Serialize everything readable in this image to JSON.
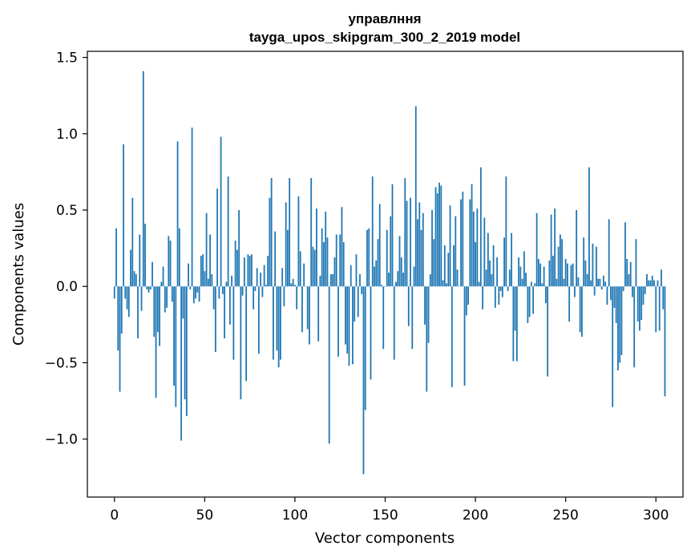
{
  "chart_data": {
    "type": "bar",
    "title": "управлння",
    "subtitle": "tayga_upos_skipgram_300_2_2019 model",
    "xlabel": "Vector components",
    "ylabel": "Components values",
    "xlim": [
      -15,
      315
    ],
    "ylim": [
      -1.38,
      1.54
    ],
    "x_ticks": [
      {
        "value": 0,
        "label": "0"
      },
      {
        "value": 50,
        "label": "50"
      },
      {
        "value": 100,
        "label": "100"
      },
      {
        "value": 150,
        "label": "150"
      },
      {
        "value": 200,
        "label": "200"
      },
      {
        "value": 250,
        "label": "250"
      },
      {
        "value": 300,
        "label": "300"
      }
    ],
    "y_ticks": [
      {
        "value": -1.0,
        "label": "−1.0"
      },
      {
        "value": -0.5,
        "label": "−0.5"
      },
      {
        "value": 0.0,
        "label": "0.0"
      },
      {
        "value": 0.5,
        "label": "0.5"
      },
      {
        "value": 1.0,
        "label": "1.0"
      },
      {
        "value": 1.5,
        "label": "1.5"
      }
    ],
    "bar_color": "#1f77b4",
    "values": [
      -0.08,
      0.38,
      -0.42,
      -0.69,
      -0.31,
      0.93,
      -0.08,
      -0.15,
      -0.2,
      0.24,
      0.58,
      0.1,
      0.08,
      -0.34,
      0.34,
      -0.16,
      1.41,
      0.41,
      -0.02,
      -0.04,
      -0.02,
      0.16,
      -0.33,
      -0.73,
      -0.3,
      -0.39,
      0.03,
      0.13,
      -0.17,
      -0.14,
      0.33,
      0.3,
      -0.1,
      -0.65,
      -0.79,
      0.95,
      0.38,
      -1.01,
      -0.21,
      -0.74,
      -0.85,
      0.15,
      -0.02,
      1.04,
      -0.11,
      -0.08,
      -0.04,
      -0.1,
      0.2,
      0.21,
      0.1,
      0.48,
      0.05,
      0.34,
      0.08,
      -0.15,
      -0.43,
      0.64,
      -0.08,
      0.98,
      -0.05,
      -0.34,
      0.03,
      0.72,
      -0.25,
      0.07,
      -0.48,
      0.3,
      0.24,
      0.5,
      -0.74,
      -0.06,
      0.19,
      -0.62,
      0.21,
      0.2,
      0.21,
      -0.15,
      -0.03,
      0.12,
      -0.44,
      0.09,
      -0.07,
      0.14,
      0.01,
      0.2,
      0.58,
      0.71,
      -0.48,
      0.36,
      -0.42,
      -0.53,
      -0.48,
      0.12,
      -0.13,
      0.55,
      0.37,
      0.71,
      0.02,
      0.05,
      0.01,
      -0.15,
      0.59,
      0.23,
      -0.3,
      0.15,
      0.0,
      -0.28,
      -0.38,
      0.71,
      0.26,
      0.24,
      0.51,
      -0.36,
      0.07,
      0.38,
      0.29,
      0.49,
      0.32,
      -1.03,
      0.08,
      0.08,
      0.19,
      0.34,
      -0.46,
      0.34,
      0.52,
      0.29,
      -0.38,
      -0.44,
      -0.52,
      0.14,
      -0.51,
      -0.23,
      0.21,
      -0.2,
      0.08,
      -0.05,
      -1.23,
      -0.81,
      0.37,
      0.38,
      -0.61,
      0.72,
      0.13,
      0.17,
      0.31,
      0.54,
      0.01,
      -0.41,
      0.0,
      0.37,
      0.09,
      0.46,
      0.67,
      -0.48,
      0.03,
      0.1,
      0.33,
      0.19,
      0.09,
      0.71,
      0.56,
      -0.26,
      0.58,
      -0.41,
      0.13,
      1.18,
      0.44,
      0.55,
      0.37,
      0.48,
      -0.25,
      -0.69,
      -0.37,
      0.08,
      0.5,
      0.31,
      0.65,
      0.61,
      0.68,
      0.66,
      0.04,
      0.27,
      0.02,
      0.22,
      0.53,
      -0.66,
      0.27,
      0.46,
      0.11,
      0.0,
      0.57,
      0.62,
      -0.65,
      -0.19,
      -0.12,
      0.57,
      0.67,
      0.49,
      0.29,
      0.51,
      0.03,
      0.78,
      -0.15,
      0.45,
      0.11,
      0.35,
      0.17,
      0.08,
      0.27,
      -0.14,
      0.19,
      -0.12,
      -0.03,
      -0.07,
      0.32,
      0.72,
      -0.03,
      0.11,
      0.35,
      -0.49,
      -0.29,
      -0.49,
      0.19,
      0.13,
      0.05,
      0.23,
      0.09,
      -0.24,
      -0.2,
      0.03,
      -0.18,
      0.02,
      0.48,
      0.18,
      0.15,
      0.02,
      0.13,
      -0.11,
      -0.59,
      0.17,
      0.47,
      0.2,
      0.51,
      0.05,
      0.26,
      0.34,
      0.31,
      0.05,
      0.18,
      0.15,
      -0.23,
      0.14,
      0.15,
      -0.07,
      0.5,
      0.06,
      -0.3,
      -0.33,
      0.32,
      0.17,
      0.08,
      0.78,
      0.04,
      0.28,
      -0.06,
      0.26,
      0.05,
      0.05,
      -0.02,
      0.07,
      0.03,
      -0.12,
      0.44,
      -0.09,
      -0.79,
      -0.14,
      -0.24,
      -0.55,
      -0.5,
      -0.45,
      -0.03,
      0.42,
      0.18,
      0.08,
      0.16,
      -0.07,
      -0.53,
      0.31,
      -0.23,
      -0.29,
      -0.22,
      -0.12,
      -0.05,
      0.08,
      0.04,
      0.04,
      0.07,
      0.04,
      -0.3,
      0.04,
      -0.29,
      0.11,
      -0.15,
      -0.72
    ]
  }
}
